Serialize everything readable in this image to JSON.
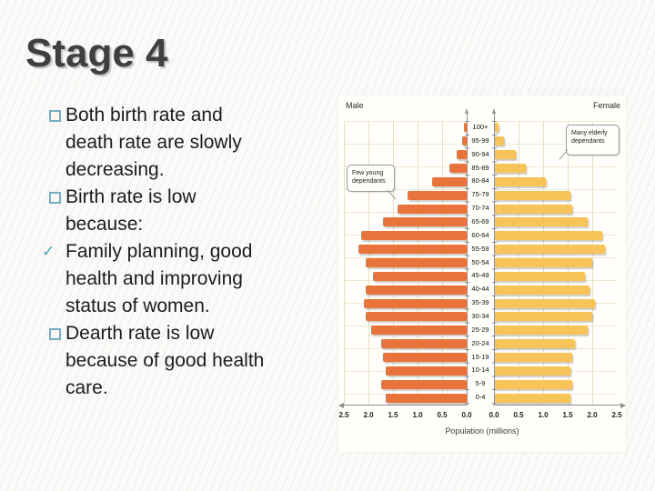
{
  "slide": {
    "title": "Stage 4",
    "bullets": [
      {
        "marker": "square",
        "text": "Both birth rate and\ndeath rate are slowly\ndecreasing."
      },
      {
        "marker": "square",
        "text": " Birth  rate is low\nbecause:"
      },
      {
        "marker": "check",
        "text": " Family planning, good\nhealth and improving\nstatus of women."
      },
      {
        "marker": "square",
        "text": "Dearth rate is low\nbecause of good health\ncare."
      }
    ]
  },
  "chart_data": {
    "type": "bar",
    "subtype": "population-pyramid",
    "left_header": "Male",
    "right_header": "Female",
    "xlabel": "Population (millions)",
    "axis_max": 2.5,
    "x_ticks_left": [
      "2.5",
      "2.0",
      "1.5",
      "1.0",
      "0.5",
      "0.0"
    ],
    "x_ticks_right": [
      "0.0",
      "0.5",
      "1.0",
      "1.5",
      "2.0",
      "2.5"
    ],
    "categories": [
      "100+",
      "95-99",
      "90-94",
      "85-89",
      "80-84",
      "75-79",
      "70-74",
      "65-69",
      "60-64",
      "55-59",
      "50-54",
      "45-49",
      "40-44",
      "35-39",
      "30-34",
      "25-29",
      "20-24",
      "15-19",
      "10-14",
      "5-9",
      "0-4"
    ],
    "series": [
      {
        "name": "Male",
        "color": "#e8743c",
        "values": [
          0.05,
          0.1,
          0.2,
          0.35,
          0.7,
          1.2,
          1.4,
          1.7,
          2.15,
          2.2,
          2.05,
          1.9,
          2.05,
          2.1,
          2.05,
          1.95,
          1.75,
          1.7,
          1.65,
          1.75,
          1.65
        ]
      },
      {
        "name": "Female",
        "color": "#f7c45a",
        "values": [
          0.1,
          0.2,
          0.45,
          0.65,
          1.05,
          1.55,
          1.6,
          1.9,
          2.2,
          2.25,
          2.0,
          1.85,
          1.95,
          2.05,
          2.0,
          1.9,
          1.65,
          1.6,
          1.55,
          1.6,
          1.55
        ]
      }
    ],
    "annotations": [
      {
        "text": "Few young\ndependants",
        "side": "left"
      },
      {
        "text": "Many elderly\ndependants",
        "side": "right"
      }
    ],
    "layout": {
      "grid": true,
      "legend": "none"
    },
    "colors": {
      "male": "#e8743c",
      "female": "#f7c45a",
      "grid": "#e6dfc2"
    }
  }
}
